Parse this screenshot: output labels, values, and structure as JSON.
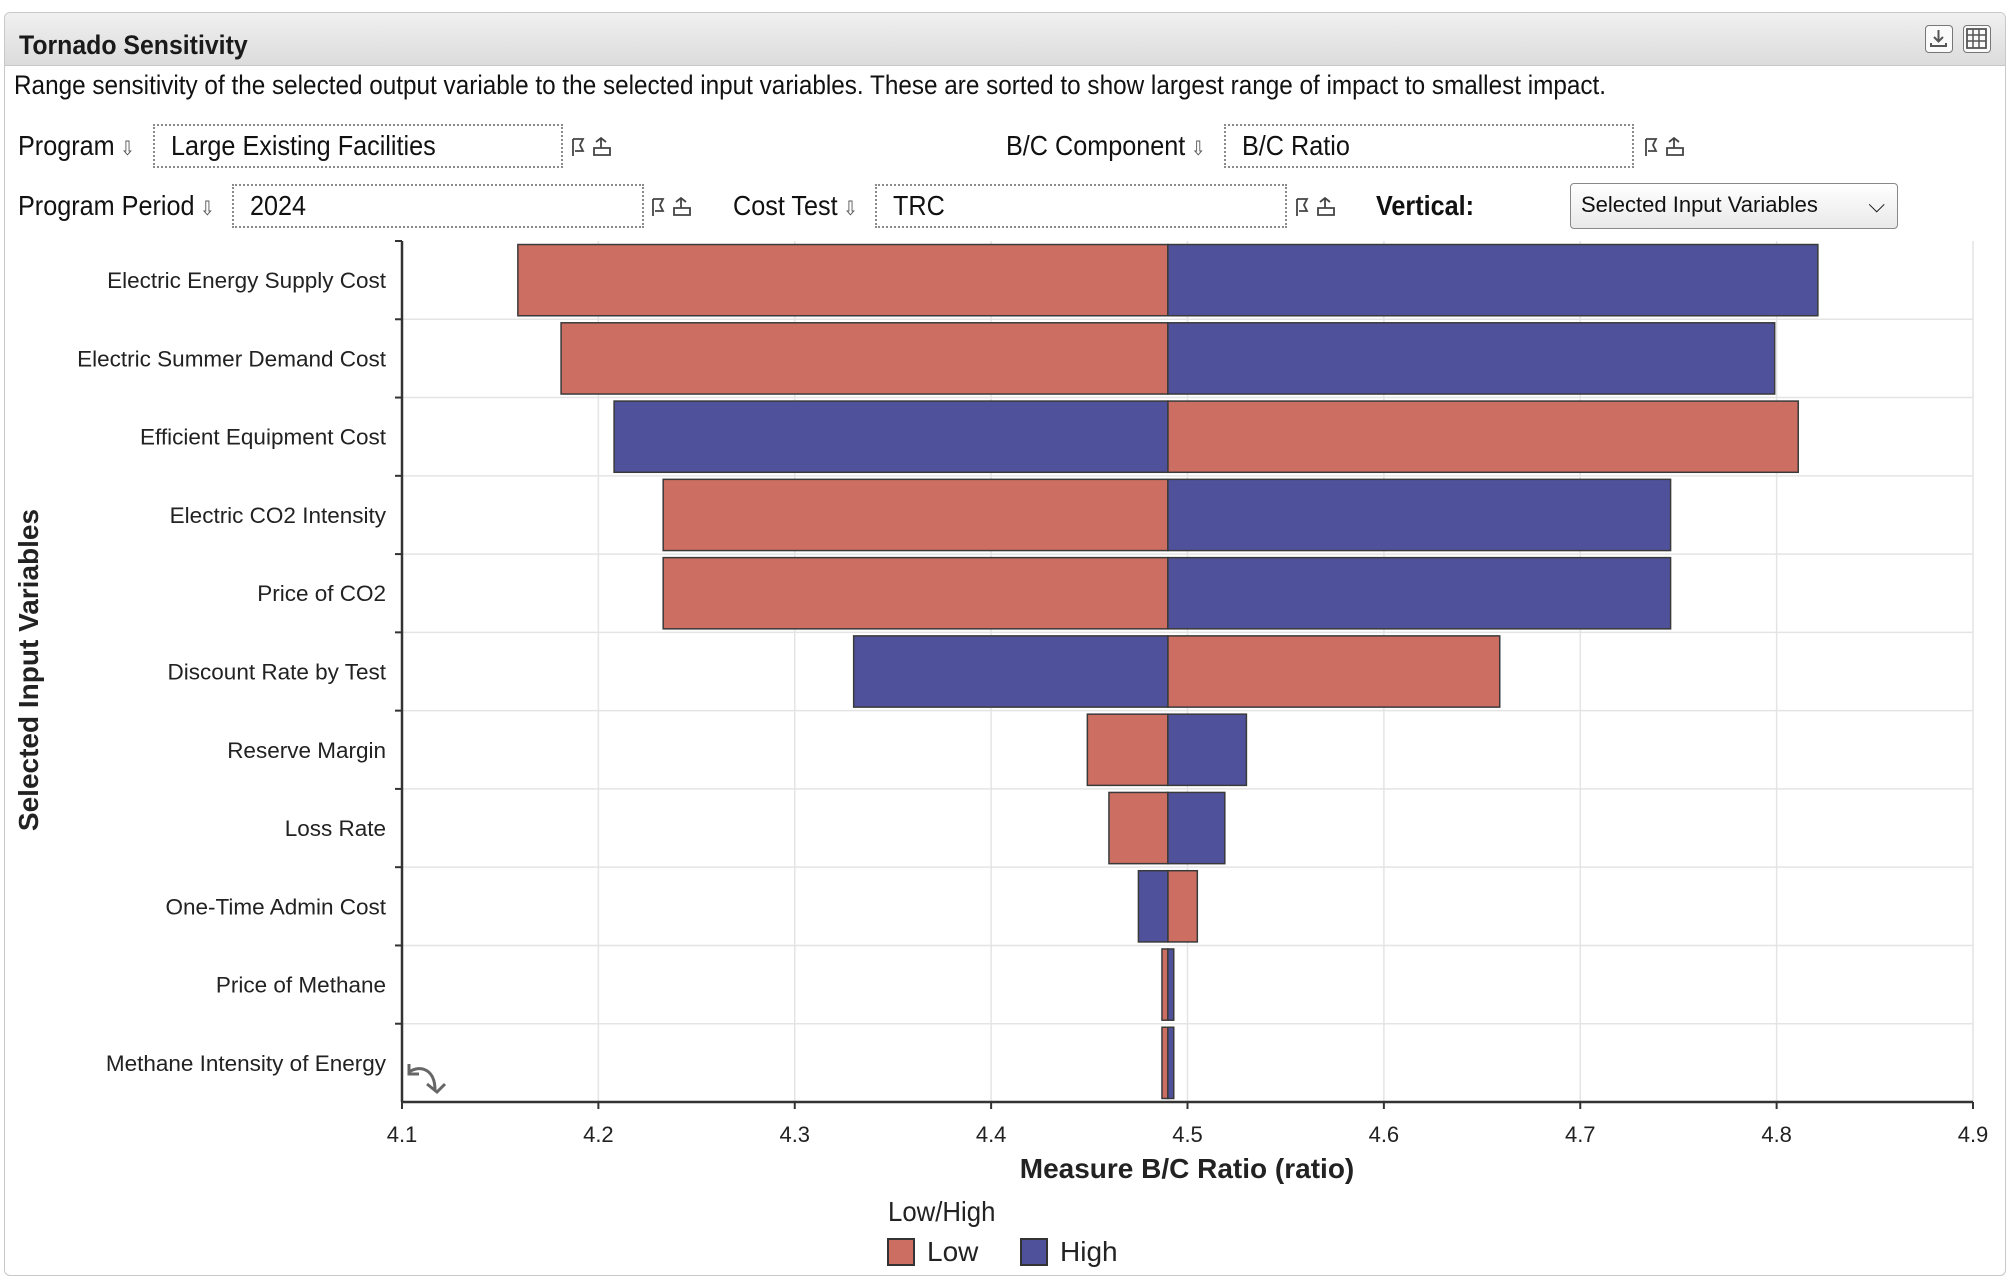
{
  "panel": {
    "title": "Tornado Sensitivity",
    "description": "Range sensitivity of the selected output variable to the selected input variables. These are sorted to show largest range of impact to smallest impact.",
    "icons": [
      "download-icon",
      "table-icon"
    ]
  },
  "controls": {
    "program": {
      "label": "Program",
      "value": "Large Existing Facilities"
    },
    "bc_component": {
      "label": "B/C Component",
      "value": "B/C Ratio"
    },
    "program_period": {
      "label": "Program Period",
      "value": "2024"
    },
    "cost_test": {
      "label": "Cost Test",
      "value": "TRC"
    },
    "vertical": {
      "label": "Vertical:",
      "value": "Selected Input Variables"
    }
  },
  "colors": {
    "low": "#cc6e61",
    "high": "#4f529b",
    "grid": "#e4e4e4",
    "axis": "#333333"
  },
  "chart_data": {
    "type": "bar",
    "orientation": "horizontal-tornado",
    "title": "",
    "xlabel": "Measure B/C Ratio (ratio)",
    "ylabel": "Selected Input Variables",
    "xlim": [
      4.1,
      4.9
    ],
    "xticks": [
      "4.1",
      "4.2",
      "4.3",
      "4.4",
      "4.5",
      "4.6",
      "4.7",
      "4.8",
      "4.9"
    ],
    "base": 4.49,
    "legend_title": "Low/High",
    "categories": [
      "Electric Energy Supply Cost",
      "Electric Summer Demand Cost",
      "Efficient Equipment Cost",
      "Electric CO2 Intensity",
      "Price of CO2",
      "Discount Rate by Test",
      "Reserve Margin",
      "Loss Rate",
      "One-Time Admin Cost",
      "Price of Methane",
      "Methane Intensity of Energy"
    ],
    "series": [
      {
        "name": "Low",
        "values": [
          4.159,
          4.181,
          4.811,
          4.233,
          4.233,
          4.659,
          4.449,
          4.46,
          4.505,
          4.487,
          4.487
        ]
      },
      {
        "name": "High",
        "values": [
          4.821,
          4.799,
          4.208,
          4.746,
          4.746,
          4.33,
          4.53,
          4.519,
          4.475,
          4.493,
          4.493
        ]
      }
    ]
  }
}
